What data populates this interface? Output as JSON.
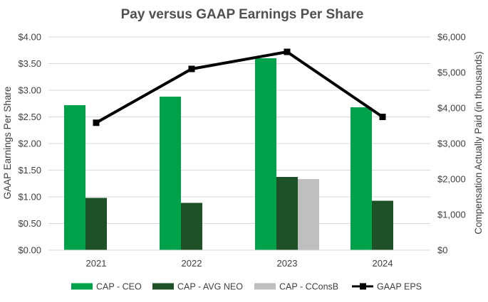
{
  "chart_data": {
    "type": "bar",
    "title": "Pay versus GAAP Earnings Per Share",
    "categories": [
      "2021",
      "2022",
      "2023",
      "2024"
    ],
    "ylabel_left": "GAAP Earnings Per Share",
    "ylabel_right": "Compensation Actually Paid (in thousands)",
    "ylim_left": [
      0,
      4
    ],
    "ylim_right": [
      0,
      6000
    ],
    "yticks_left": [
      "$0.00",
      "$0.50",
      "$1.00",
      "$1.50",
      "$2.00",
      "$2.50",
      "$3.00",
      "$3.50",
      "$4.00"
    ],
    "yticks_right": [
      "$0",
      "$1,000",
      "$2,000",
      "$3,000",
      "$4,000",
      "$5,000",
      "$6,000"
    ],
    "grid": true,
    "legend_position": "bottom",
    "series": [
      {
        "name": "CAP - CEO",
        "axis": "right",
        "kind": "bar",
        "color": "#00a14b",
        "values": [
          4080,
          4320,
          5400,
          4020
        ]
      },
      {
        "name": "CAP - AVG NEO",
        "axis": "right",
        "kind": "bar",
        "color": "#1e5128",
        "values": [
          1470,
          1330,
          2060,
          1390
        ]
      },
      {
        "name": "CAP - CConsB",
        "axis": "right",
        "kind": "bar",
        "color": "#bfbfbf",
        "values": [
          null,
          null,
          2000,
          null
        ]
      },
      {
        "name": "GAAP EPS",
        "axis": "left",
        "kind": "line",
        "color": "#000000",
        "values": [
          2.39,
          3.4,
          3.72,
          2.5
        ]
      }
    ]
  }
}
